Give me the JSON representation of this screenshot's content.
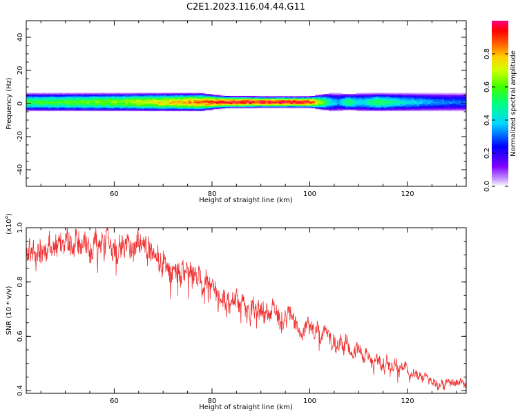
{
  "title": "C2E1.2023.116.04.44.G11",
  "colors": {
    "snr_line": "#f03030",
    "axis": "#000000",
    "background": "#ffffff"
  },
  "chart_data": [
    {
      "type": "heatmap",
      "xlabel": "Height of straight line (km)",
      "ylabel": "Frequency (Hz)",
      "xlim": [
        42,
        132
      ],
      "ylim": [
        -50,
        50
      ],
      "x_ticks": [
        60,
        80,
        100,
        120
      ],
      "x_ticklabels": [
        "60",
        "80",
        "100",
        "120"
      ],
      "y_ticks": [
        40,
        20,
        0,
        -20,
        -40
      ],
      "y_ticklabels": [
        "40",
        "20",
        "0",
        "-20",
        "-40"
      ],
      "colorbar": {
        "label": "Normalized spectral amplitude",
        "range": [
          0,
          1
        ],
        "ticks": [
          0.0,
          0.2,
          0.4,
          0.6,
          0.8
        ],
        "ticklabels": [
          "0.0",
          "0.2",
          "0.4",
          "0.6",
          "0.8"
        ]
      },
      "band_center_hz": 1,
      "profile": {
        "x": [
          42,
          50,
          56,
          62,
          66,
          72,
          78,
          82,
          90,
          95,
          100,
          102,
          104,
          106,
          108,
          110,
          114,
          118,
          124,
          132
        ],
        "width_hz": [
          5.5,
          5.5,
          5.5,
          5.5,
          5.5,
          5.5,
          5.5,
          4.0,
          3.5,
          3.5,
          3.5,
          4.5,
          5.5,
          5.5,
          5.0,
          5.5,
          5.5,
          5.5,
          5.5,
          5.5
        ],
        "peak_amp": [
          0.55,
          0.58,
          0.62,
          0.65,
          0.72,
          0.78,
          0.86,
          0.93,
          0.97,
          0.97,
          0.95,
          0.7,
          0.45,
          0.35,
          0.55,
          0.4,
          0.55,
          0.45,
          0.35,
          0.3
        ]
      }
    },
    {
      "type": "line",
      "xlabel": "Height of straight line (km)",
      "ylabel": "SNR (10 * v/v)",
      "y_multiplier": "(x10",
      "y_multiplier_exp": "4",
      "y_multiplier_close": ")",
      "xlim": [
        42,
        132
      ],
      "ylim": [
        0.39,
        1.0
      ],
      "x_ticks": [
        60,
        80,
        100,
        120
      ],
      "x_ticklabels": [
        "60",
        "80",
        "100",
        "120"
      ],
      "y_ticks": [
        0.4,
        0.6,
        0.8,
        1.0
      ],
      "y_ticklabels": [
        "0.4",
        "0.6",
        "0.8",
        "1.0"
      ],
      "trend": {
        "x": [
          42,
          50,
          56,
          62,
          66,
          70,
          74,
          78,
          82,
          86,
          90,
          94,
          98,
          102,
          106,
          110,
          114,
          118,
          122,
          126,
          128,
          132
        ],
        "y": [
          0.92,
          0.93,
          0.94,
          0.93,
          0.91,
          0.87,
          0.84,
          0.8,
          0.74,
          0.72,
          0.7,
          0.67,
          0.64,
          0.61,
          0.57,
          0.54,
          0.51,
          0.48,
          0.46,
          0.44,
          0.43,
          0.42
        ]
      },
      "noise_amplitude": [
        {
          "x": 42,
          "a": 0.05
        },
        {
          "x": 70,
          "a": 0.05
        },
        {
          "x": 100,
          "a": 0.035
        },
        {
          "x": 132,
          "a": 0.015
        }
      ]
    }
  ]
}
